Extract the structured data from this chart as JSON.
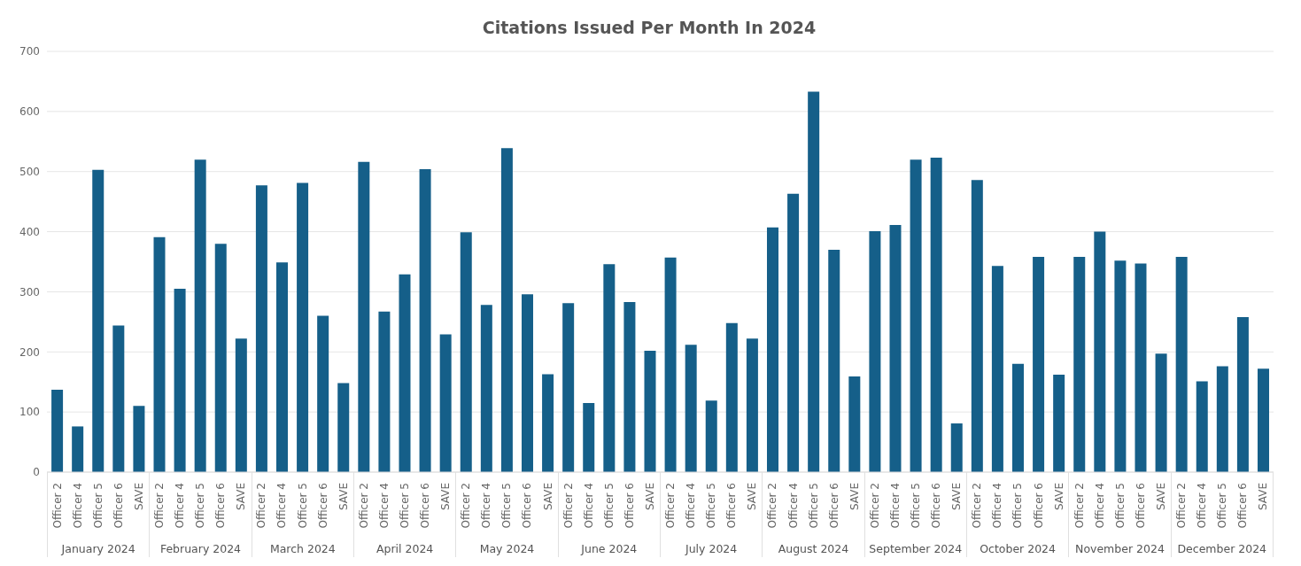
{
  "chart_data": {
    "type": "bar",
    "title": "Citations Issued Per Month In 2024",
    "categories": [
      "Officer 2",
      "Officer 4",
      "Officer 5",
      "Officer 6",
      "SAVE",
      "Officer 2",
      "Officer 4",
      "Officer 5",
      "Officer 6",
      "SAVE",
      "Officer 2",
      "Officer 4",
      "Officer 5",
      "Officer 6",
      "SAVE",
      "Officer 2",
      "Officer 4",
      "Officer 5",
      "Officer 6",
      "SAVE",
      "Officer 2",
      "Officer 4",
      "Officer 5",
      "Officer 6",
      "SAVE",
      "Officer 2",
      "Officer 4",
      "Officer 5",
      "Officer 6",
      "SAVE",
      "Officer 2",
      "Officer 4",
      "Officer 5",
      "Officer 6",
      "SAVE",
      "Officer 2",
      "Officer 4",
      "Officer 5",
      "Officer 6",
      "SAVE",
      "Officer 2",
      "Officer 4",
      "Officer 5",
      "Officer 6",
      "SAVE",
      "Officer 2",
      "Officer 4",
      "Officer 5",
      "Officer 6",
      "SAVE",
      "Officer 2",
      "Officer 4",
      "Officer 5",
      "Officer 6",
      "SAVE",
      "Officer 2",
      "Officer 4",
      "Officer 5",
      "Officer 6",
      "SAVE"
    ],
    "values": [
      137,
      76,
      503,
      244,
      110,
      391,
      305,
      520,
      380,
      222,
      477,
      349,
      481,
      260,
      148,
      516,
      267,
      329,
      504,
      229,
      399,
      278,
      539,
      296,
      163,
      281,
      115,
      346,
      283,
      202,
      357,
      212,
      119,
      248,
      222,
      407,
      463,
      633,
      370,
      159,
      401,
      411,
      520,
      523,
      81,
      486,
      343,
      180,
      358,
      162,
      358,
      400,
      352,
      347,
      197,
      358,
      151,
      176,
      258,
      172
    ],
    "color": "#155f89",
    "ylim": [
      0,
      700
    ],
    "yticks": [
      0,
      100,
      200,
      300,
      400,
      500,
      600,
      700
    ],
    "grid": "y",
    "annotations": [
      "January 2024",
      "February 2024",
      "March 2024",
      "April 2024",
      "May 2024",
      "June 2024",
      "July 2024",
      "August 2024",
      "September 2024",
      "October 2024",
      "November 2024",
      "December 2024"
    ]
  }
}
